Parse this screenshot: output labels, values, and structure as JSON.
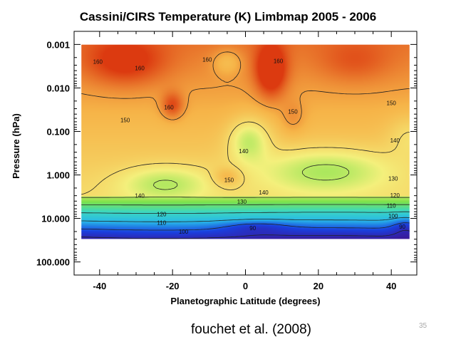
{
  "slide": {
    "citation": "fouchet et al. (2008)",
    "slide_number": "35"
  },
  "chart_data": {
    "type": "heatmap",
    "title": "Cassini/CIRS Temperature (K) Limbmap 2005 - 2006",
    "xlabel": "Planetographic Latitude (degrees)",
    "ylabel": "Pressure (hPa)",
    "x_scale": "linear",
    "y_scale": "log",
    "y_inverted": true,
    "xlim": [
      -47,
      47
    ],
    "ylim": [
      200,
      0.0005
    ],
    "data_extent": {
      "x": [
        -45,
        45
      ],
      "y": [
        0.001,
        30
      ]
    },
    "x_ticks": [
      {
        "value": -40,
        "label": "-40"
      },
      {
        "value": -20,
        "label": "-20"
      },
      {
        "value": 0,
        "label": "0"
      },
      {
        "value": 20,
        "label": "20"
      },
      {
        "value": 40,
        "label": "40"
      }
    ],
    "y_ticks": [
      {
        "value": 0.001,
        "label": "0.001"
      },
      {
        "value": 0.01,
        "label": "0.010"
      },
      {
        "value": 0.1,
        "label": "0.100"
      },
      {
        "value": 1,
        "label": "1.000"
      },
      {
        "value": 10,
        "label": "10.000"
      },
      {
        "value": 100,
        "label": "100.000"
      }
    ],
    "colormap": [
      "#3a1a9a",
      "#1a40e0",
      "#28b8e8",
      "#3cd8c0",
      "#7ee24a",
      "#f4f07c",
      "#f6b448",
      "#dc3a10"
    ],
    "color_range": [
      85,
      170
    ],
    "contour_levels": [
      90,
      100,
      110,
      120,
      130,
      140,
      150,
      160
    ],
    "contour_labels": [
      {
        "text": "160",
        "x": -40.5,
        "y": 0.0025
      },
      {
        "text": "160",
        "x": -29,
        "y": 0.0035
      },
      {
        "text": "160",
        "x": -10.5,
        "y": 0.0022
      },
      {
        "text": "160",
        "x": 9,
        "y": 0.0024
      },
      {
        "text": "160",
        "x": -21,
        "y": 0.028
      },
      {
        "text": "150",
        "x": -33,
        "y": 0.055
      },
      {
        "text": "150",
        "x": 13,
        "y": 0.035
      },
      {
        "text": "150",
        "x": 40,
        "y": 0.022
      },
      {
        "text": "140",
        "x": 41,
        "y": 0.16
      },
      {
        "text": "140",
        "x": -0.5,
        "y": 0.28
      },
      {
        "text": "150",
        "x": -4.5,
        "y": 1.3
      },
      {
        "text": "140",
        "x": 5,
        "y": 2.5
      },
      {
        "text": "140",
        "x": -29,
        "y": 3.0
      },
      {
        "text": "130",
        "x": -1,
        "y": 4.1
      },
      {
        "text": "130",
        "x": 40.5,
        "y": 1.2
      },
      {
        "text": "120",
        "x": 41,
        "y": 2.9
      },
      {
        "text": "120",
        "x": -23,
        "y": 8.0
      },
      {
        "text": "110",
        "x": 40,
        "y": 5.1
      },
      {
        "text": "110",
        "x": -23,
        "y": 12.5
      },
      {
        "text": "100",
        "x": 40.5,
        "y": 8.8
      },
      {
        "text": "100",
        "x": -17,
        "y": 20
      },
      {
        "text": "90",
        "x": 2,
        "y": 16.5
      },
      {
        "text": "90",
        "x": 43,
        "y": 15.5
      }
    ]
  }
}
